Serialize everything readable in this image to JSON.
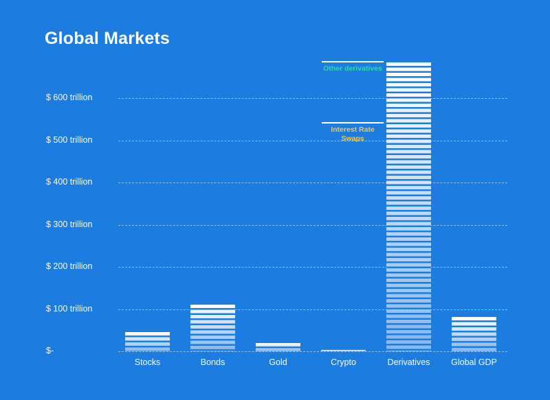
{
  "page": {
    "title": "Global Markets",
    "colors": {
      "background": "#1d7ce0",
      "bar_fill": "#ffffff",
      "gridline": "rgba(255,255,255,0.55)",
      "text": "#ffffff",
      "annotation_other_derivatives": "#2fd9a2",
      "annotation_interest_rate_swaps": "#edc94f"
    }
  },
  "chart_data": {
    "type": "bar",
    "title": "Global Markets",
    "unit": "USD trillion",
    "categories": [
      "Stocks",
      "Bonds",
      "Gold",
      "Crypto",
      "Derivatives",
      "Global GDP"
    ],
    "values": [
      45,
      110,
      20,
      3,
      685,
      82
    ],
    "ylim": [
      0,
      685
    ],
    "grid": "horizontal-dashed",
    "legend": "none",
    "yticks": [
      {
        "value": 0,
        "label": "$-"
      },
      {
        "value": 100,
        "label": "$ 100 trillion"
      },
      {
        "value": 200,
        "label": "$ 200 trillion"
      },
      {
        "value": 300,
        "label": "$ 300 trillion"
      },
      {
        "value": 400,
        "label": "$ 400 trillion"
      },
      {
        "value": 500,
        "label": "$ 500 trillion"
      },
      {
        "value": 600,
        "label": "$ 600 trillion"
      }
    ],
    "annotations": [
      {
        "text": "Other derivatives",
        "value": 685,
        "color": "#2fd9a2",
        "name": "other-derivatives"
      },
      {
        "text": "Interest Rate Swaps",
        "value": 540,
        "color": "#edc94f",
        "name": "interest-rate-swaps"
      }
    ]
  }
}
